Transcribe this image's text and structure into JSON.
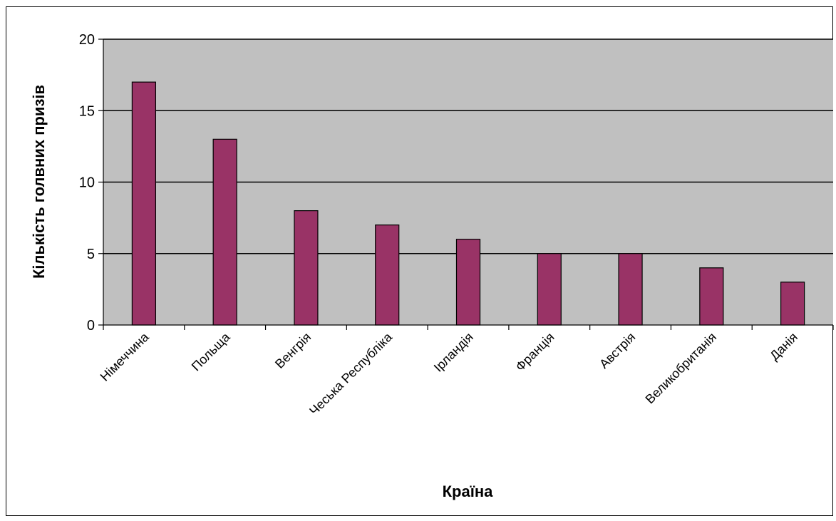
{
  "chart_data": {
    "type": "bar",
    "title": "",
    "xlabel": "Країна",
    "ylabel": "Кількість голвних призів",
    "categories": [
      "Німеччина",
      "Польща",
      "Венгрія",
      "Чеська Республіка",
      "Ірландія",
      "Франція",
      "Австрія",
      "Великобританія",
      "Данія"
    ],
    "values": [
      17,
      13,
      8,
      7,
      6,
      5,
      5,
      4,
      3
    ],
    "ylim": [
      0,
      20
    ],
    "yticks": [
      0,
      5,
      10,
      15,
      20
    ],
    "grid": true,
    "legend": "none",
    "colors": {
      "bar_fill": "#993366",
      "plot_background": "#C0C0C0",
      "gridline": "#000000"
    }
  }
}
